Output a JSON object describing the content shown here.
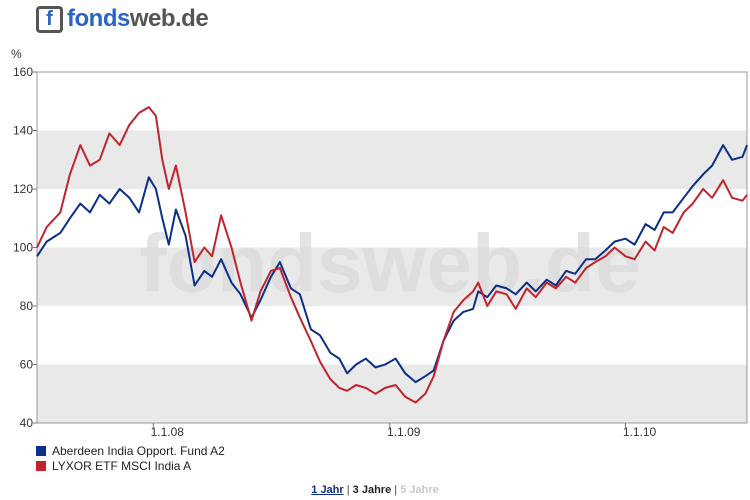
{
  "brand": {
    "prefix": "fonds",
    "suffix": "web.de",
    "icon_letter": "f"
  },
  "watermark": "fondsweb.de",
  "chart_data": {
    "type": "line",
    "ylabel": "%",
    "ylim": [
      40,
      160
    ],
    "yticks": [
      40,
      60,
      80,
      100,
      120,
      140,
      160
    ],
    "x_tick_labels": [
      {
        "date": "2008-01-01",
        "label": "1.1.08"
      },
      {
        "date": "2009-01-01",
        "label": "1.1.09"
      },
      {
        "date": "2010-01-01",
        "label": "1.1.10"
      }
    ],
    "xlim": [
      "2007-07-05",
      "2010-07-08"
    ],
    "legend_position": "bottom-left",
    "series": [
      {
        "name": "Aberdeen India Opport. Fund A2",
        "color": "#0b2f88",
        "x": [
          "2007-07-05",
          "2007-07-20",
          "2007-08-10",
          "2007-08-25",
          "2007-09-10",
          "2007-09-25",
          "2007-10-10",
          "2007-10-25",
          "2007-11-10",
          "2007-11-25",
          "2007-12-10",
          "2007-12-25",
          "2008-01-05",
          "2008-01-15",
          "2008-01-25",
          "2008-02-05",
          "2008-02-20",
          "2008-03-05",
          "2008-03-20",
          "2008-04-01",
          "2008-04-15",
          "2008-05-01",
          "2008-05-15",
          "2008-06-01",
          "2008-06-15",
          "2008-07-01",
          "2008-07-15",
          "2008-08-01",
          "2008-08-15",
          "2008-09-01",
          "2008-09-15",
          "2008-10-01",
          "2008-10-15",
          "2008-10-27",
          "2008-11-10",
          "2008-11-25",
          "2008-12-10",
          "2008-12-25",
          "2009-01-10",
          "2009-01-25",
          "2009-02-10",
          "2009-02-25",
          "2009-03-10",
          "2009-03-25",
          "2009-04-10",
          "2009-04-25",
          "2009-05-10",
          "2009-05-18",
          "2009-06-01",
          "2009-06-15",
          "2009-07-01",
          "2009-07-15",
          "2009-08-01",
          "2009-08-15",
          "2009-09-01",
          "2009-09-15",
          "2009-10-01",
          "2009-10-15",
          "2009-11-01",
          "2009-11-15",
          "2009-12-01",
          "2009-12-15",
          "2010-01-01",
          "2010-01-15",
          "2010-02-01",
          "2010-02-15",
          "2010-03-01",
          "2010-03-15",
          "2010-04-01",
          "2010-04-15",
          "2010-05-01",
          "2010-05-15",
          "2010-06-01",
          "2010-06-15",
          "2010-07-01",
          "2010-07-08"
        ],
        "values": [
          97,
          102,
          105,
          110,
          115,
          112,
          118,
          115,
          120,
          117,
          112,
          124,
          120,
          110,
          101,
          113,
          104,
          87,
          92,
          90,
          96,
          88,
          84,
          76,
          82,
          90,
          95,
          86,
          84,
          72,
          70,
          64,
          62,
          57,
          60,
          62,
          59,
          60,
          62,
          57,
          54,
          56,
          58,
          68,
          75,
          78,
          79,
          85,
          83,
          87,
          86,
          84,
          88,
          85,
          89,
          87,
          92,
          91,
          96,
          96,
          99,
          102,
          103,
          101,
          108,
          106,
          112,
          112,
          117,
          121,
          125,
          128,
          135,
          130,
          131,
          135
        ]
      },
      {
        "name": "LYXOR ETF MSCI India A",
        "color": "#c0242c",
        "x": [
          "2007-07-05",
          "2007-07-20",
          "2007-08-10",
          "2007-08-25",
          "2007-09-10",
          "2007-09-25",
          "2007-10-10",
          "2007-10-25",
          "2007-11-10",
          "2007-11-25",
          "2007-12-10",
          "2007-12-25",
          "2008-01-05",
          "2008-01-15",
          "2008-01-25",
          "2008-02-05",
          "2008-02-20",
          "2008-03-05",
          "2008-03-20",
          "2008-04-01",
          "2008-04-15",
          "2008-05-01",
          "2008-05-15",
          "2008-06-01",
          "2008-06-15",
          "2008-07-01",
          "2008-07-15",
          "2008-08-01",
          "2008-08-15",
          "2008-09-01",
          "2008-09-15",
          "2008-10-01",
          "2008-10-15",
          "2008-10-27",
          "2008-11-10",
          "2008-11-25",
          "2008-12-10",
          "2008-12-25",
          "2009-01-10",
          "2009-01-25",
          "2009-02-10",
          "2009-02-25",
          "2009-03-10",
          "2009-03-25",
          "2009-04-10",
          "2009-04-25",
          "2009-05-10",
          "2009-05-18",
          "2009-06-01",
          "2009-06-15",
          "2009-07-01",
          "2009-07-15",
          "2009-08-01",
          "2009-08-15",
          "2009-09-01",
          "2009-09-15",
          "2009-10-01",
          "2009-10-15",
          "2009-11-01",
          "2009-11-15",
          "2009-12-01",
          "2009-12-15",
          "2010-01-01",
          "2010-01-15",
          "2010-02-01",
          "2010-02-15",
          "2010-03-01",
          "2010-03-15",
          "2010-04-01",
          "2010-04-15",
          "2010-05-01",
          "2010-05-15",
          "2010-06-01",
          "2010-06-15",
          "2010-07-01",
          "2010-07-08"
        ],
        "values": [
          100,
          107,
          112,
          125,
          135,
          128,
          130,
          139,
          135,
          142,
          146,
          148,
          145,
          130,
          120,
          128,
          112,
          95,
          100,
          97,
          111,
          100,
          88,
          75,
          85,
          92,
          93,
          83,
          76,
          68,
          61,
          55,
          52,
          51,
          53,
          52,
          50,
          52,
          53,
          49,
          47,
          50,
          56,
          68,
          78,
          82,
          85,
          88,
          80,
          85,
          84,
          79,
          86,
          83,
          88,
          86,
          90,
          88,
          93,
          95,
          97,
          100,
          97,
          96,
          102,
          99,
          107,
          105,
          112,
          115,
          120,
          117,
          123,
          117,
          116,
          118
        ]
      }
    ]
  },
  "range_selector": {
    "options": [
      "1 Jahr",
      "3 Jahre",
      "5 Jahre"
    ],
    "separator": "|"
  }
}
